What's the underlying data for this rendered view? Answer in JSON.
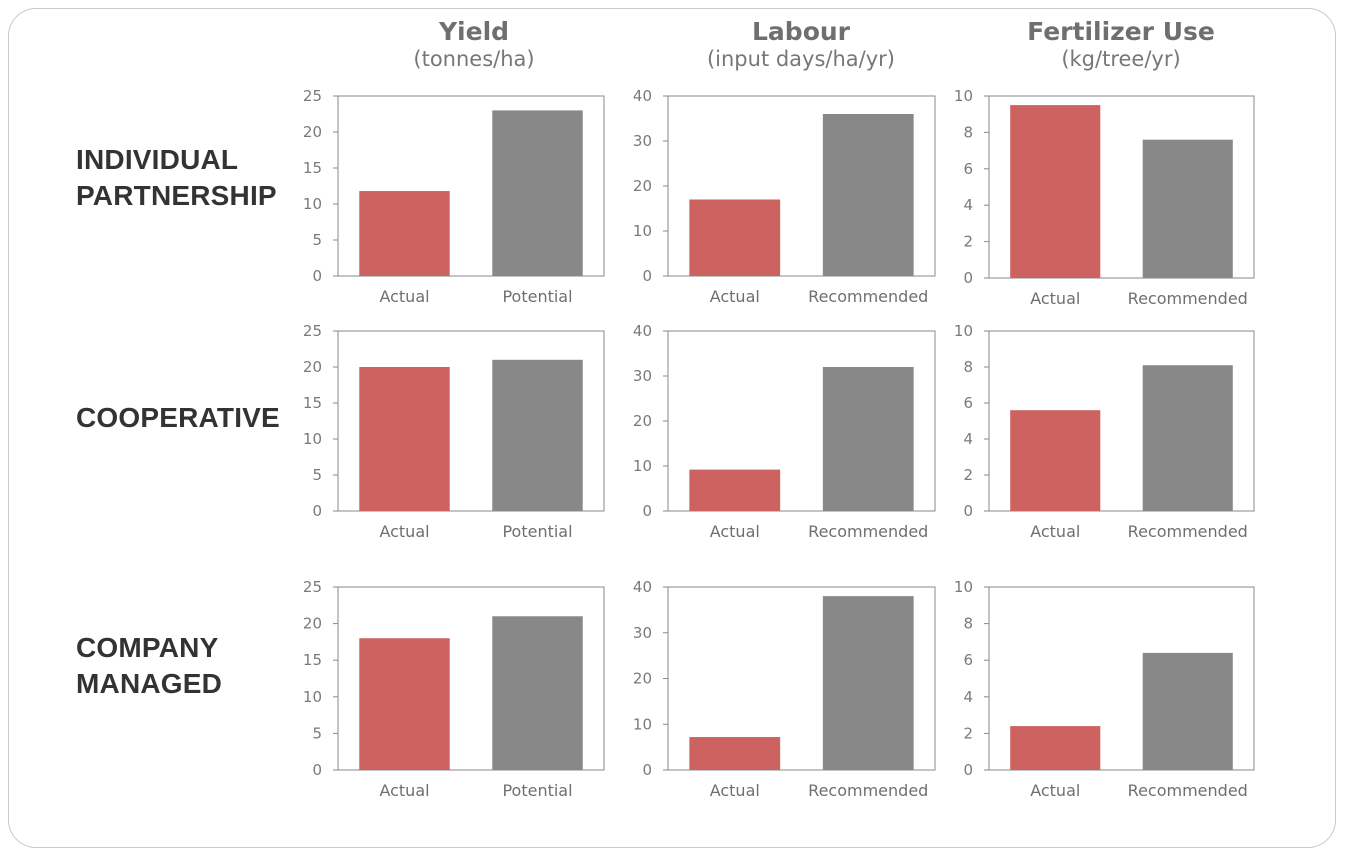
{
  "columns": [
    {
      "title": "Yield",
      "unit": "(tonnes/ha)"
    },
    {
      "title": "Labour",
      "unit": "(input days/ha/yr)"
    },
    {
      "title": "Fertilizer Use",
      "unit": "(kg/tree/yr)"
    }
  ],
  "rows": [
    {
      "line1": "INDIVIDUAL",
      "line2": "PARTNERSHIP"
    },
    {
      "line1": "COOPERATIVE",
      "line2": ""
    },
    {
      "line1": "COMPANY",
      "line2": "MANAGED"
    }
  ],
  "colors": {
    "actual": "#cc6360",
    "target": "#888888",
    "axis": "#8a8a8a"
  },
  "chart_data": [
    {
      "type": "bar",
      "row": "INDIVIDUAL PARTNERSHIP",
      "metric": "Yield",
      "categories": [
        "Actual",
        "Potential"
      ],
      "values": [
        11.8,
        23
      ],
      "ylim": [
        0,
        25
      ],
      "yticks": [
        0,
        5,
        10,
        15,
        20,
        25
      ]
    },
    {
      "type": "bar",
      "row": "INDIVIDUAL PARTNERSHIP",
      "metric": "Labour",
      "categories": [
        "Actual",
        "Recommended"
      ],
      "values": [
        17,
        36
      ],
      "ylim": [
        0,
        40
      ],
      "yticks": [
        0,
        10,
        20,
        30,
        40
      ]
    },
    {
      "type": "bar",
      "row": "INDIVIDUAL PARTNERSHIP",
      "metric": "Fertilizer Use",
      "categories": [
        "Actual",
        "Recommended"
      ],
      "values": [
        9.5,
        7.6
      ],
      "ylim": [
        0,
        10
      ],
      "yticks": [
        0,
        2,
        4,
        6,
        8,
        10
      ]
    },
    {
      "type": "bar",
      "row": "COOPERATIVE",
      "metric": "Yield",
      "categories": [
        "Actual",
        "Potential"
      ],
      "values": [
        20,
        21
      ],
      "ylim": [
        0,
        25
      ],
      "yticks": [
        0,
        5,
        10,
        15,
        20,
        25
      ]
    },
    {
      "type": "bar",
      "row": "COOPERATIVE",
      "metric": "Labour",
      "categories": [
        "Actual",
        "Recommended"
      ],
      "values": [
        9.2,
        32
      ],
      "ylim": [
        0,
        40
      ],
      "yticks": [
        0,
        10,
        20,
        30,
        40
      ]
    },
    {
      "type": "bar",
      "row": "COOPERATIVE",
      "metric": "Fertilizer Use",
      "categories": [
        "Actual",
        "Recommended"
      ],
      "values": [
        5.6,
        8.1
      ],
      "ylim": [
        0,
        10
      ],
      "yticks": [
        0,
        2,
        4,
        6,
        8,
        10
      ]
    },
    {
      "type": "bar",
      "row": "COMPANY MANAGED",
      "metric": "Yield",
      "categories": [
        "Actual",
        "Potential"
      ],
      "values": [
        18,
        21
      ],
      "ylim": [
        0,
        25
      ],
      "yticks": [
        0,
        5,
        10,
        15,
        20,
        25
      ]
    },
    {
      "type": "bar",
      "row": "COMPANY MANAGED",
      "metric": "Labour",
      "categories": [
        "Actual",
        "Recommended"
      ],
      "values": [
        7.2,
        38
      ],
      "ylim": [
        0,
        40
      ],
      "yticks": [
        0,
        10,
        20,
        30,
        40
      ]
    },
    {
      "type": "bar",
      "row": "COMPANY MANAGED",
      "metric": "Fertilizer Use",
      "categories": [
        "Actual",
        "Recommended"
      ],
      "values": [
        2.4,
        6.4
      ],
      "ylim": [
        0,
        10
      ],
      "yticks": [
        0,
        2,
        4,
        6,
        8,
        10
      ]
    }
  ]
}
